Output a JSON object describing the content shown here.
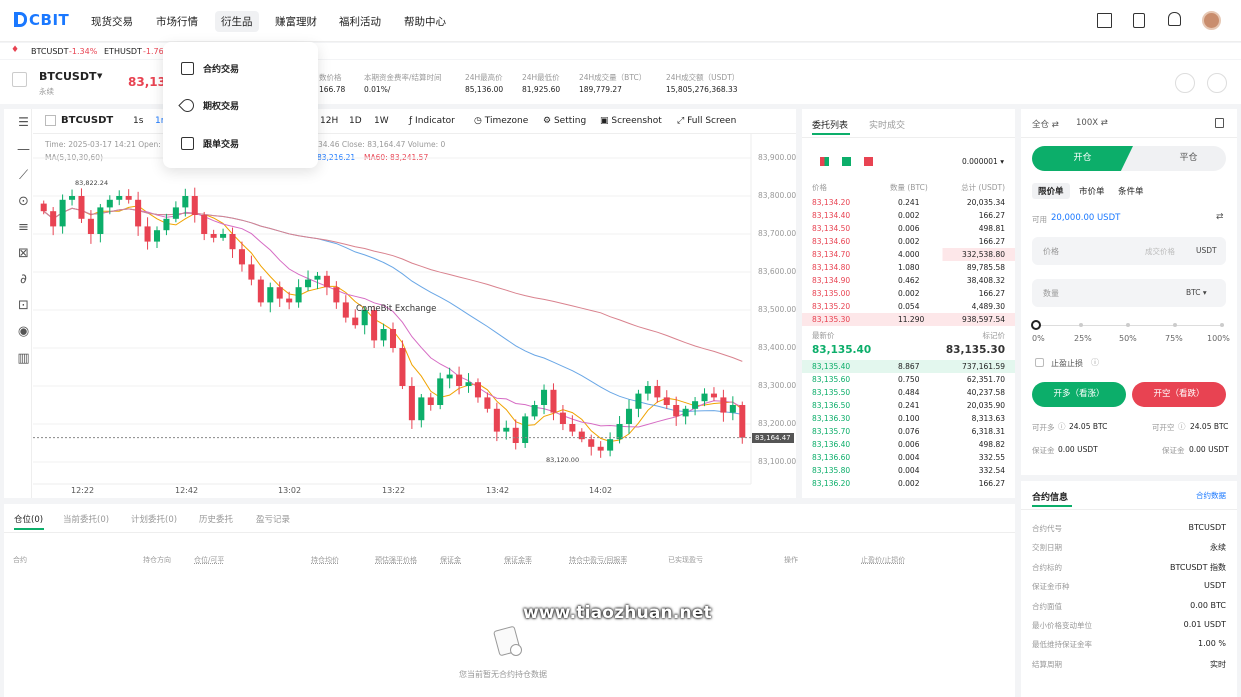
{
  "nav": {
    "logo": "CBIT",
    "items": [
      "现货交易",
      "市场行情",
      "衍生品",
      "赚富理财",
      "福利活动",
      "帮助中心"
    ]
  },
  "ticker": [
    {
      "sym": "BTCUSDT",
      "chg": "-1.34%"
    },
    {
      "sym": "ETHUSDT",
      "chg": "-1.76"
    }
  ],
  "header": {
    "symbol": "BTCUSDT",
    "sub": "永续",
    "price": "83,135",
    "stats": [
      {
        "label": "数价格",
        "value": "166.78"
      },
      {
        "label": "本期资金费率/结算时间",
        "value": "0.01%/"
      },
      {
        "label": "24H最高价",
        "value": "85,136.00"
      },
      {
        "label": "24H最低价",
        "value": "81,925.60"
      },
      {
        "label": "24H成交量（BTC）",
        "value": "189,779.27"
      },
      {
        "label": "24H成交额（USDT）",
        "value": "15,805,276,368.33"
      }
    ]
  },
  "dropdown": [
    "合约交易",
    "期权交易",
    "跟单交易"
  ],
  "chart": {
    "symbol": "BTCUSDT",
    "intervals": [
      "1s",
      "1m",
      "12H",
      "1D",
      "1W"
    ],
    "tools": [
      "Indicator",
      "Timezone",
      "Setting",
      "Screenshot",
      "Full Screen"
    ],
    "ohlc_line": "Time: 2025-03-17 14:21  Open:",
    "ohlc_rest": "34.46   Close: 83,164.47   Volume: 0",
    "ma_label": "MA(5,10,30,60)",
    "ma30": "83,216.21",
    "ma60": "MA60: 83,241.57",
    "watermark": "ComeBit Exchange",
    "high_mark": "83,822.24",
    "low_mark": "83,120.00",
    "last_price": "83,164.47",
    "yticks": [
      "83,900.00",
      "83,800.00",
      "83,700.00",
      "83,600.00",
      "83,500.00",
      "83,400.00",
      "83,300.00",
      "83,200.00",
      "83,100.00"
    ],
    "xticks": [
      "12:22",
      "12:42",
      "13:02",
      "13:22",
      "13:42",
      "14:02"
    ]
  },
  "chart_data": {
    "type": "candlestick",
    "ylim": [
      83080,
      83920
    ],
    "closes": [
      83760,
      83720,
      83790,
      83800,
      83740,
      83700,
      83770,
      83790,
      83800,
      83790,
      83720,
      83680,
      83710,
      83740,
      83770,
      83800,
      83750,
      83700,
      83690,
      83700,
      83660,
      83620,
      83580,
      83520,
      83560,
      83530,
      83520,
      83560,
      83580,
      83590,
      83560,
      83520,
      83480,
      83460,
      83500,
      83420,
      83450,
      83400,
      83300,
      83210,
      83270,
      83250,
      83320,
      83330,
      83300,
      83310,
      83270,
      83240,
      83180,
      83190,
      83150,
      83220,
      83250,
      83290,
      83230,
      83200,
      83180,
      83160,
      83140,
      83130,
      83160,
      83200,
      83240,
      83280,
      83300,
      83270,
      83250,
      83220,
      83240,
      83260,
      83280,
      83270,
      83230,
      83250,
      83164
    ]
  },
  "orderbook": {
    "tabs": [
      "委托列表",
      "实时成交"
    ],
    "precision": "0.000001",
    "headers": [
      "价格",
      "数量 (BTC)",
      "总计 (USDT)"
    ],
    "asks": [
      [
        "83,134.20",
        "0.241",
        "20,035.34"
      ],
      [
        "83,134.40",
        "0.002",
        "166.27"
      ],
      [
        "83,134.50",
        "0.006",
        "498.81"
      ],
      [
        "83,134.60",
        "0.002",
        "166.27"
      ],
      [
        "83,134.70",
        "4.000",
        "332,538.80"
      ],
      [
        "83,134.80",
        "1.080",
        "89,785.58"
      ],
      [
        "83,134.90",
        "0.462",
        "38,408.32"
      ],
      [
        "83,135.00",
        "0.002",
        "166.27"
      ],
      [
        "83,135.20",
        "0.054",
        "4,489.30"
      ],
      [
        "83,135.30",
        "11.290",
        "938,597.54"
      ]
    ],
    "latest_label": "最新价",
    "mark_label": "标记价",
    "latest": "83,135.40",
    "mark": "83,135.30",
    "bids": [
      [
        "83,135.40",
        "8.867",
        "737,161.59"
      ],
      [
        "83,135.60",
        "0.750",
        "62,351.70"
      ],
      [
        "83,135.50",
        "0.484",
        "40,237.58"
      ],
      [
        "83,136.50",
        "0.241",
        "20,035.90"
      ],
      [
        "83,136.30",
        "0.100",
        "8,313.63"
      ],
      [
        "83,135.70",
        "0.076",
        "6,318.31"
      ],
      [
        "83,136.40",
        "0.006",
        "498.82"
      ],
      [
        "83,136.60",
        "0.004",
        "332.55"
      ],
      [
        "83,135.80",
        "0.004",
        "332.54"
      ],
      [
        "83,136.20",
        "0.002",
        "166.27"
      ]
    ]
  },
  "trade": {
    "margin_mode": "全仓",
    "leverage": "100X",
    "open": "开仓",
    "close": "平仓",
    "types": [
      "限价单",
      "市价单",
      "条件单"
    ],
    "avail_label": "可用",
    "avail": "20,000.00 USDT",
    "price_ph": "价格",
    "best_price": "成交价格",
    "price_unit": "USDT",
    "qty_ph": "数量",
    "qty_unit": "BTC",
    "slider": [
      "0%",
      "25%",
      "50%",
      "75%",
      "100%"
    ],
    "tpsl": "止盈止损",
    "long_btn": "开多（看涨）",
    "short_btn": "开空（看跌）",
    "can_long_label": "可开多",
    "can_long": "24.05 BTC",
    "can_short_label": "可开空",
    "can_short": "24.05 BTC",
    "margin_label": "保证金",
    "margin_long": "0.00 USDT",
    "margin_short": "0.00 USDT"
  },
  "contract": {
    "title": "合约信息",
    "link": "合约数据",
    "rows": [
      [
        "合约代号",
        "BTCUSDT"
      ],
      [
        "交割日期",
        "永续"
      ],
      [
        "合约标的",
        "BTCUSDT 指数"
      ],
      [
        "保证金币种",
        "USDT"
      ],
      [
        "合约面值",
        "0.00 BTC"
      ],
      [
        "最小价格变动单位",
        "0.01 USDT"
      ],
      [
        "最低维持保证金率",
        "1.00 %"
      ],
      [
        "结算周期",
        "实时"
      ]
    ]
  },
  "positions": {
    "tabs": [
      "仓位(0)",
      "当前委托(0)",
      "计划委托(0)",
      "历史委托",
      "盈亏记录"
    ],
    "cols": [
      "合约",
      "持仓方向",
      "仓位/可平",
      "持仓均价",
      "预估强平价格",
      "保证金",
      "保证金率",
      "持仓中盈亏/回报率",
      "已实现盈亏",
      "操作",
      "止盈价/止损价"
    ],
    "empty": "您当前暂无合约持仓数据"
  },
  "watermark_site": "www.tiaozhuan.net",
  "colors": {
    "up": "#0cae6a",
    "down": "#e84352",
    "brand": "#1a78ff"
  }
}
